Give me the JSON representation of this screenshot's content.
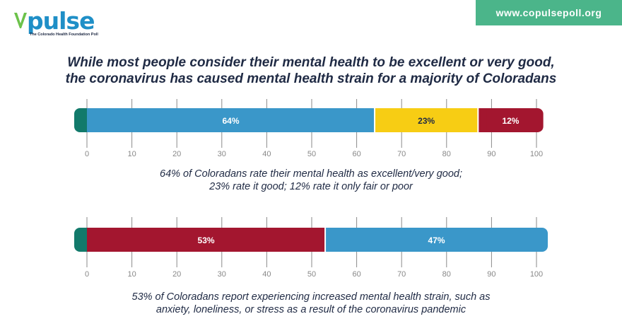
{
  "logo": {
    "name": "pulse",
    "tagline": "The Colorado Health Foundation Poll"
  },
  "url": "www.copulsepoll.org",
  "headline": {
    "line1": "While most people consider their mental health to be excellent or very good,",
    "line2": "the coronavirus has caused mental health strain for a majority of Coloradans"
  },
  "colors": {
    "teal": "#127a6b",
    "blue": "#3a97c9",
    "yellow": "#f7cd14",
    "red": "#a3162f",
    "tick": "#8a8a8a"
  },
  "chart_data": [
    {
      "type": "bar",
      "orientation": "horizontal-stacked",
      "xlim": [
        0,
        100
      ],
      "ticks": [
        0,
        10,
        20,
        30,
        40,
        50,
        60,
        70,
        80,
        90,
        100
      ],
      "segments": [
        {
          "value": 64,
          "label": "64%",
          "color": "#3a97c9"
        },
        {
          "value": 23,
          "label": "23%",
          "color": "#f7cd14"
        },
        {
          "value": 12,
          "label": "12%",
          "color": "#a3162f"
        }
      ],
      "caption": [
        "64% of Coloradans rate their mental health as excellent/very good;",
        "23% rate it good; 12% rate it only fair or poor"
      ]
    },
    {
      "type": "bar",
      "orientation": "horizontal-stacked",
      "xlim": [
        0,
        100
      ],
      "ticks": [
        0,
        10,
        20,
        30,
        40,
        50,
        60,
        70,
        80,
        90,
        100
      ],
      "segments": [
        {
          "value": 53,
          "label": "53%",
          "color": "#a3162f"
        },
        {
          "value": 47,
          "label": "47%",
          "color": "#3a97c9"
        }
      ],
      "caption": [
        "53% of Coloradans report experiencing increased mental health strain, such as",
        "anxiety, loneliness, or stress as a result of the coronavirus pandemic"
      ]
    }
  ]
}
